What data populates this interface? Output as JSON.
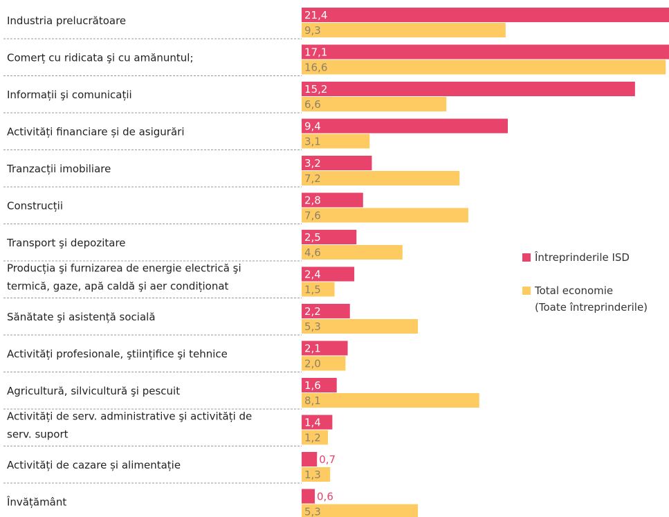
{
  "chart_data": {
    "type": "hbar",
    "categories": [
      "Industria prelucrătoare",
      "Comerț cu ridicata şi cu amănuntul;",
      "Informații şi comunicații",
      "Activități financiare și de asigurări",
      "Tranzacții imobiliare",
      "Construcții",
      "Transport şi depozitare",
      "Producția şi furnizarea de energie electrică şi\ntermică, gaze, apă caldă şi aer condiționat",
      "Sănătate şi asistență socială",
      "Activități profesionale, ştiințifice şi tehnice",
      "Agricultură, silvicultură şi pescuit",
      "Activități de serv. administrative şi activități de\nserv. suport",
      "Activități de cazare și alimentație",
      "Învățământ"
    ],
    "series": [
      {
        "name": "Întreprinderile ISD",
        "color": "#e8436a",
        "values": [
          21.4,
          17.1,
          15.2,
          9.4,
          3.2,
          2.8,
          2.5,
          2.4,
          2.2,
          2.1,
          1.6,
          1.4,
          0.7,
          0.6
        ],
        "value_labels": [
          "21,4",
          "17,1",
          "15,2",
          "9,4",
          "3,2",
          "2,8",
          "2,5",
          "2,4",
          "2,2",
          "2,1",
          "1,6",
          "1,4",
          "0,7",
          "0,6"
        ]
      },
      {
        "name": "Total economie\n(Toate întreprinderile)",
        "color": "#fecb63",
        "values": [
          9.3,
          16.6,
          6.6,
          3.1,
          7.2,
          7.6,
          4.6,
          1.5,
          5.3,
          2.0,
          8.1,
          1.2,
          1.3,
          5.3
        ],
        "value_labels": [
          "9,3",
          "16,6",
          "6,6",
          "3,1",
          "7,2",
          "7,6",
          "4,6",
          "1,5",
          "5,3",
          "2,0",
          "8,1",
          "1,2",
          "1,3",
          "5,3"
        ]
      }
    ],
    "xlim": [
      0,
      16.75
    ]
  }
}
